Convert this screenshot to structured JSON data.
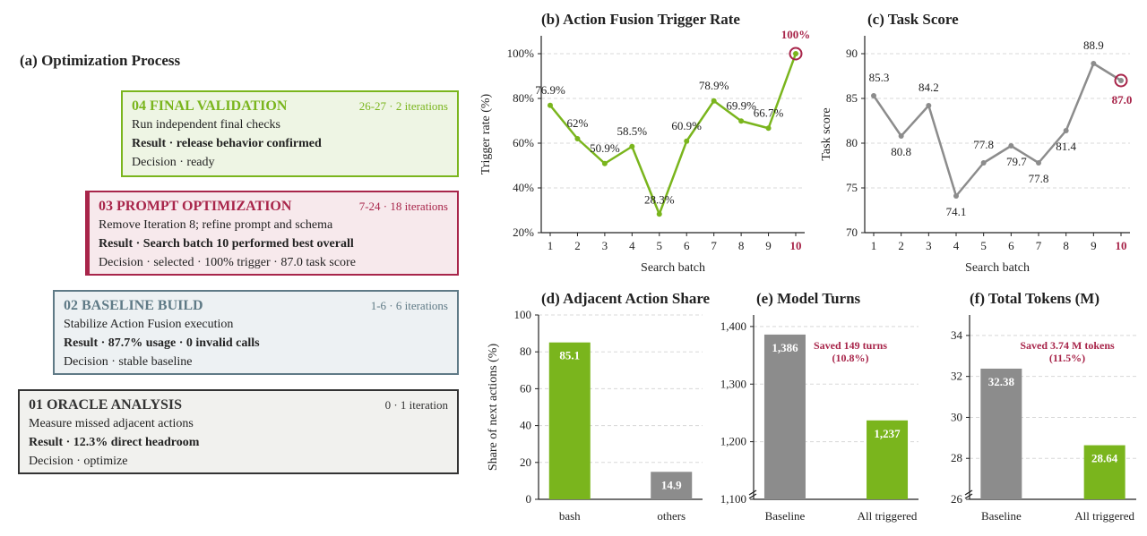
{
  "panel_a": {
    "title": "(a) Optimization Process",
    "stages": [
      {
        "title": "04 FINAL VALIDATION",
        "meta": "26-27 · 2 iterations",
        "task": "Run independent final checks",
        "result": "Result · release behavior confirmed",
        "decision": "Decision · ready",
        "color": "#7ab51d",
        "bg": "#eef5e4"
      },
      {
        "title": "03 PROMPT OPTIMIZATION",
        "meta": "7-24 · 18 iterations",
        "task": "Remove Iteration 8; refine prompt and schema",
        "result": "Result · Search batch 10 performed best overall",
        "decision": "Decision · selected · 100% trigger · 87.0 task score",
        "color": "#a8254a",
        "bg": "#f7e9ec"
      },
      {
        "title": "02 BASELINE BUILD",
        "meta": "1-6 · 6 iterations",
        "task": "Stabilize Action Fusion execution",
        "result": "Result · 87.7% usage · 0 invalid calls",
        "decision": "Decision · stable baseline",
        "color": "#5f7a86",
        "bg": "#edf1f3"
      },
      {
        "title": "01 ORACLE ANALYSIS",
        "meta": "0 · 1 iteration",
        "task": "Measure missed adjacent actions",
        "result": "Result · 12.3% direct headroom",
        "decision": "Decision · optimize",
        "color": "#333333",
        "bg": "#f1f1ee"
      }
    ]
  },
  "colors": {
    "green": "#7ab51d",
    "gray": "#8c8c8c",
    "red": "#a8254a"
  },
  "chart_data": [
    {
      "id": "b",
      "type": "line",
      "title": "(b) Action Fusion Trigger Rate",
      "xlabel": "Search batch",
      "ylabel": "Trigger rate (%)",
      "x": [
        1,
        2,
        3,
        4,
        5,
        6,
        7,
        8,
        9,
        10
      ],
      "xtick_labels": [
        "1",
        "2",
        "3",
        "4",
        "5",
        "6",
        "7",
        "8",
        "9",
        "10"
      ],
      "y": [
        76.9,
        62,
        50.9,
        58.5,
        28.3,
        60.9,
        78.9,
        69.9,
        66.7,
        100
      ],
      "labels": [
        "76.9%",
        "62%",
        "50.9%",
        "58.5%",
        "28.3%",
        "60.9%",
        "78.9%",
        "69.9%",
        "66.7%",
        "100%"
      ],
      "ylim": [
        20,
        108
      ],
      "yticks": [
        20,
        40,
        60,
        80,
        100
      ],
      "ytick_labels": [
        "20%",
        "40%",
        "60%",
        "80%",
        "100%"
      ],
      "highlight_index": 9,
      "grid": "horizontal dashed"
    },
    {
      "id": "c",
      "type": "line",
      "title": "(c) Task Score",
      "xlabel": "Search batch",
      "ylabel": "Task score",
      "x": [
        1,
        2,
        3,
        4,
        5,
        6,
        7,
        8,
        9,
        10
      ],
      "xtick_labels": [
        "1",
        "2",
        "3",
        "4",
        "5",
        "6",
        "7",
        "8",
        "9",
        "10"
      ],
      "y": [
        85.3,
        80.8,
        84.2,
        74.1,
        77.8,
        79.7,
        77.8,
        81.4,
        88.9,
        87.0
      ],
      "labels": [
        "85.3",
        "80.8",
        "84.2",
        "74.1",
        "77.8",
        "79.7",
        "77.8",
        "81.4",
        "88.9",
        "87.0"
      ],
      "ylim": [
        70,
        92
      ],
      "yticks": [
        70,
        75,
        80,
        85,
        90
      ],
      "ytick_labels": [
        "70",
        "75",
        "80",
        "85",
        "90"
      ],
      "highlight_index": 9,
      "grid": "horizontal dashed"
    },
    {
      "id": "d",
      "type": "bar",
      "title": "(d) Adjacent Action Share",
      "ylabel": "Share of next actions (%)",
      "categories": [
        "bash",
        "others"
      ],
      "values": [
        85.1,
        14.9
      ],
      "value_labels": [
        "85.1",
        "14.9"
      ],
      "ylim": [
        0,
        100
      ],
      "yticks": [
        0,
        20,
        40,
        60,
        80,
        100
      ],
      "ytick_labels": [
        "0",
        "20",
        "40",
        "60",
        "80",
        "100"
      ]
    },
    {
      "id": "e",
      "type": "bar",
      "title": "(e) Model Turns",
      "categories": [
        "Baseline",
        "All triggered"
      ],
      "values": [
        1386,
        1237
      ],
      "value_labels": [
        "1,386",
        "1,237"
      ],
      "ylim": [
        1100,
        1420
      ],
      "yticks": [
        1100,
        1200,
        1300,
        1400
      ],
      "ytick_labels": [
        "1,100",
        "1,200",
        "1,300",
        "1,400"
      ],
      "annotation": [
        "Saved 149 turns",
        "(10.8%)"
      ],
      "axis_break": true
    },
    {
      "id": "f",
      "type": "bar",
      "title": "(f) Total Tokens (M)",
      "categories": [
        "Baseline",
        "All triggered"
      ],
      "values": [
        32.38,
        28.64
      ],
      "value_labels": [
        "32.38",
        "28.64"
      ],
      "ylim": [
        26,
        35
      ],
      "yticks": [
        26,
        28,
        30,
        32,
        34
      ],
      "ytick_labels": [
        "26",
        "28",
        "30",
        "32",
        "34"
      ],
      "annotation": [
        "Saved 3.74 M tokens",
        "(11.5%)"
      ],
      "axis_break": true
    }
  ]
}
